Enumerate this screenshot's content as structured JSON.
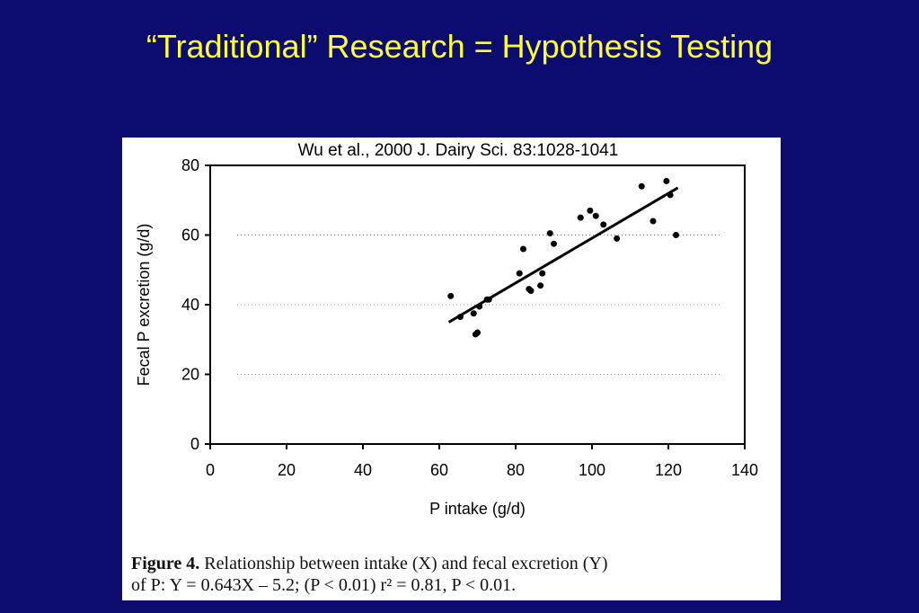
{
  "slide": {
    "title": "“Traditional” Research = Hypothesis Testing"
  },
  "figure": {
    "citation": "Wu et al., 2000 J. Dairy Sci. 83:1028-1041",
    "caption_lead": "Figure 4.",
    "caption_line1": " Relationship between intake (X) and fecal excretion (Y)",
    "caption_line2": "of P: Y = 0.643X – 5.2; (P < 0.01) r² = 0.81, P < 0.01."
  },
  "colors": {
    "background": "#0c0c6e",
    "title": "#ffff33",
    "panel": "#ffffff",
    "marks": "#000000"
  },
  "chart_data": {
    "type": "scatter",
    "title": "",
    "xlabel": "P intake (g/d)",
    "ylabel": "Fecal P excretion (g/d)",
    "xlim": [
      0,
      140
    ],
    "ylim": [
      0,
      80
    ],
    "xticks": [
      0,
      20,
      40,
      60,
      80,
      100,
      120,
      140
    ],
    "yticks": [
      0,
      20,
      40,
      60,
      80
    ],
    "grid": "dotted horizontal at 20, 40, 60",
    "series": [
      {
        "points": [
          [
            63,
            42.5
          ],
          [
            65.5,
            36.5
          ],
          [
            69,
            37.5
          ],
          [
            69.5,
            31.5
          ],
          [
            70,
            32
          ],
          [
            70.5,
            39.5
          ],
          [
            72.5,
            41.5
          ],
          [
            73,
            41.5
          ],
          [
            81,
            49
          ],
          [
            82,
            56
          ],
          [
            83.5,
            44.5
          ],
          [
            84,
            44
          ],
          [
            86.5,
            45.5
          ],
          [
            87,
            49
          ],
          [
            89,
            60.5
          ],
          [
            90,
            57.5
          ],
          [
            97,
            65
          ],
          [
            99.5,
            67
          ],
          [
            101,
            65.5
          ],
          [
            103,
            63
          ],
          [
            106.5,
            59
          ],
          [
            113,
            74
          ],
          [
            116,
            64
          ],
          [
            119.5,
            75.5
          ],
          [
            120.5,
            71.5
          ],
          [
            122,
            60
          ]
        ]
      }
    ],
    "fit_line": {
      "slope": 0.643,
      "intercept": -5.2,
      "x_range": [
        62.5,
        122.5
      ]
    }
  }
}
